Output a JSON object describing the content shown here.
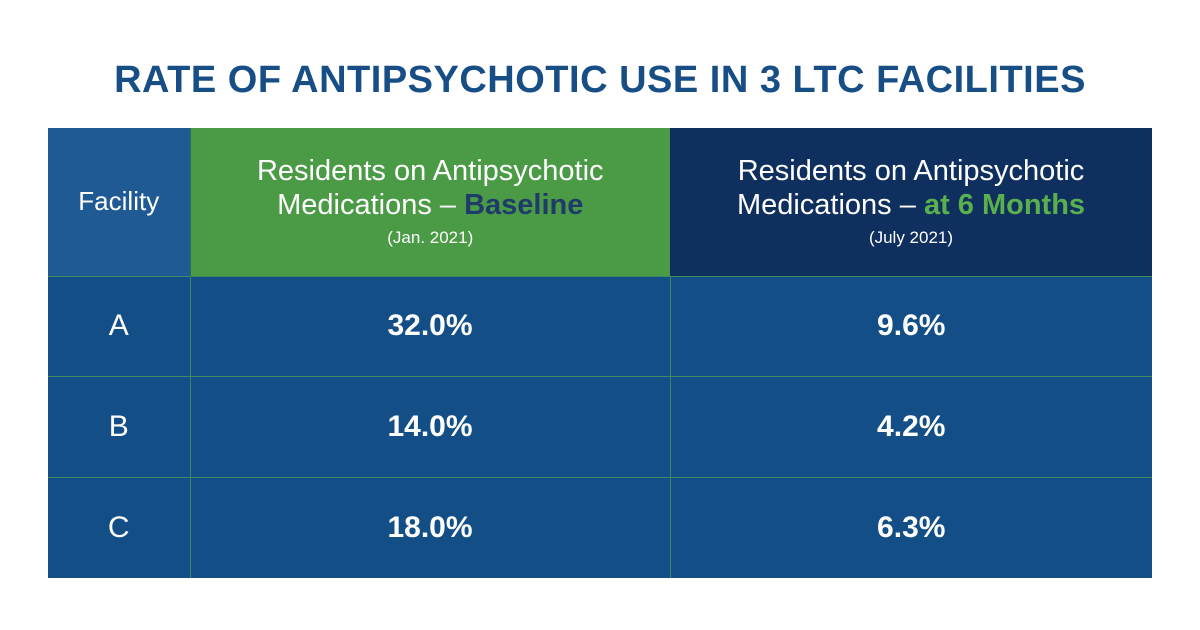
{
  "title": "RATE OF ANTIPSYCHOTIC USE IN 3 LTC FACILITIES",
  "chart_data": {
    "type": "table",
    "title": "RATE OF ANTIPSYCHOTIC USE IN 3 LTC FACILITIES",
    "columns": [
      {
        "label": "Facility"
      },
      {
        "label_lead": "Residents on Antipsychotic Medications – ",
        "label_highlight": "Baseline",
        "sublabel": "(Jan. 2021)"
      },
      {
        "label_lead": "Residents on Antipsychotic Medications – ",
        "label_highlight": "at 6 Months",
        "sublabel": "(July 2021)"
      }
    ],
    "rows": [
      {
        "facility": "A",
        "baseline": "32.0%",
        "six_months": "9.6%"
      },
      {
        "facility": "B",
        "baseline": "14.0%",
        "six_months": "4.2%"
      },
      {
        "facility": "C",
        "baseline": "18.0%",
        "six_months": "6.3%"
      }
    ]
  },
  "colors": {
    "title": "#174e86",
    "facility_header": "#1f5a94",
    "baseline_header": "#4a9a46",
    "six_month_header": "#0f2f5f",
    "body": "#134f86",
    "baseline_highlight": "#1f3b6a",
    "six_month_highlight": "#5ab04c"
  }
}
